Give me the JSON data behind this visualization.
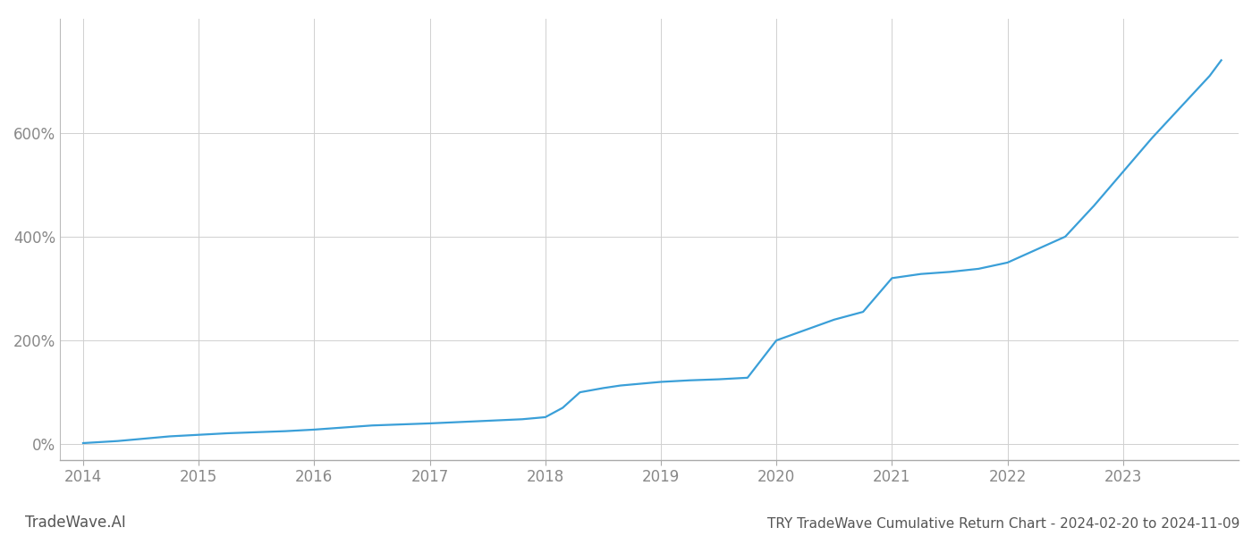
{
  "title": "TRY TradeWave Cumulative Return Chart - 2024-02-20 to 2024-11-09",
  "watermark": "TradeWave.AI",
  "line_color": "#3a9fd8",
  "background_color": "#ffffff",
  "grid_color": "#d0d0d0",
  "years": [
    2014,
    2015,
    2016,
    2017,
    2018,
    2019,
    2020,
    2021,
    2022,
    2023
  ],
  "x_values": [
    2014.0,
    2014.15,
    2014.3,
    2014.5,
    2014.75,
    2015.0,
    2015.25,
    2015.5,
    2015.75,
    2016.0,
    2016.25,
    2016.5,
    2016.75,
    2017.0,
    2017.2,
    2017.4,
    2017.6,
    2017.8,
    2018.0,
    2018.15,
    2018.3,
    2018.5,
    2018.65,
    2018.8,
    2019.0,
    2019.25,
    2019.5,
    2019.75,
    2020.0,
    2020.25,
    2020.5,
    2020.75,
    2021.0,
    2021.25,
    2021.5,
    2021.75,
    2022.0,
    2022.25,
    2022.5,
    2022.75,
    2023.0,
    2023.25,
    2023.5,
    2023.75,
    2023.85
  ],
  "y_values": [
    2,
    4,
    6,
    10,
    15,
    18,
    21,
    23,
    25,
    28,
    32,
    36,
    38,
    40,
    42,
    44,
    46,
    48,
    52,
    70,
    100,
    108,
    113,
    116,
    120,
    123,
    125,
    128,
    200,
    220,
    240,
    255,
    320,
    328,
    332,
    338,
    350,
    375,
    400,
    460,
    525,
    590,
    650,
    710,
    740
  ],
  "ylim": [
    -30,
    820
  ],
  "xlim": [
    2013.8,
    2024.0
  ],
  "yticks": [
    0,
    200,
    400,
    600
  ],
  "ytick_labels": [
    "0%",
    "200%",
    "400%",
    "600%"
  ],
  "line_width": 1.6,
  "title_fontsize": 11,
  "tick_fontsize": 12,
  "watermark_fontsize": 12,
  "title_color": "#555555",
  "tick_color": "#888888",
  "watermark_color": "#555555"
}
